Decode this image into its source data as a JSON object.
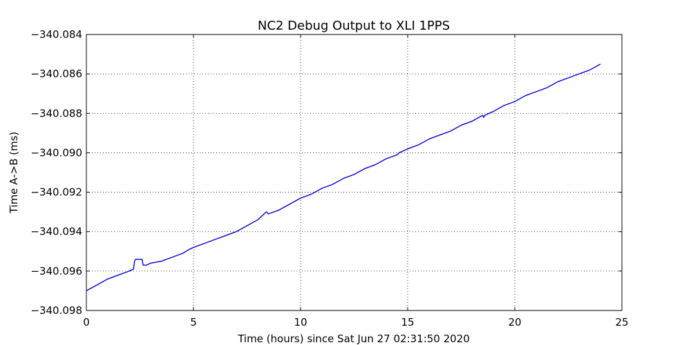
{
  "chart_data": {
    "type": "line",
    "title": "NC2 Debug Output to XLI 1PPS",
    "xlabel": "Time (hours) since Sat Jun 27 02:31:50 2020",
    "ylabel": "Time A->B (ms)",
    "xlim": [
      0,
      25
    ],
    "ylim": [
      -340.098,
      -340.084
    ],
    "x_ticks": [
      "0",
      "5",
      "10",
      "15",
      "20",
      "25"
    ],
    "y_ticks": [
      "−340.098",
      "−340.096",
      "−340.094",
      "−340.092",
      "−340.090",
      "−340.088",
      "−340.086",
      "−340.084"
    ],
    "grid": true,
    "line_color": "#0000cc",
    "series": [
      {
        "x": [
          0.0,
          0.5,
          1.0,
          1.5,
          2.0,
          2.2,
          2.25,
          2.3,
          2.35,
          2.5,
          2.6,
          2.65,
          2.7,
          2.8,
          3.0,
          3.5,
          4.0,
          4.5,
          4.8,
          5.0,
          5.5,
          6.0,
          6.5,
          7.0,
          7.5,
          8.0,
          8.4,
          8.5,
          9.0,
          9.5,
          10.0,
          10.5,
          11.0,
          11.5,
          12.0,
          12.5,
          13.0,
          13.5,
          14.0,
          14.5,
          14.6,
          15.0,
          15.5,
          16.0,
          16.5,
          17.0,
          17.5,
          18.0,
          18.5,
          18.55,
          18.6,
          19.0,
          19.5,
          20.0,
          20.5,
          21.0,
          21.5,
          22.0,
          22.5,
          23.0,
          23.5,
          24.0
        ],
        "y": [
          -340.097,
          -340.0967,
          -340.0964,
          -340.0962,
          -340.096,
          -340.0959,
          -340.0955,
          -340.0954,
          -340.0954,
          -340.0954,
          -340.0954,
          -340.0957,
          -340.0957,
          -340.0957,
          -340.0956,
          -340.0955,
          -340.0953,
          -340.0951,
          -340.0949,
          -340.0948,
          -340.0946,
          -340.0944,
          -340.0942,
          -340.094,
          -340.0937,
          -340.0934,
          -340.093,
          -340.0931,
          -340.0929,
          -340.0926,
          -340.0923,
          -340.0921,
          -340.0918,
          -340.0916,
          -340.0913,
          -340.0911,
          -340.0908,
          -340.0906,
          -340.0903,
          -340.0901,
          -340.09,
          -340.0898,
          -340.0896,
          -340.0893,
          -340.0891,
          -340.0889,
          -340.0886,
          -340.0884,
          -340.0881,
          -340.0882,
          -340.0881,
          -340.0879,
          -340.0876,
          -340.0874,
          -340.0871,
          -340.0869,
          -340.0867,
          -340.0864,
          -340.0862,
          -340.086,
          -340.0858,
          -340.0855
        ]
      }
    ]
  }
}
